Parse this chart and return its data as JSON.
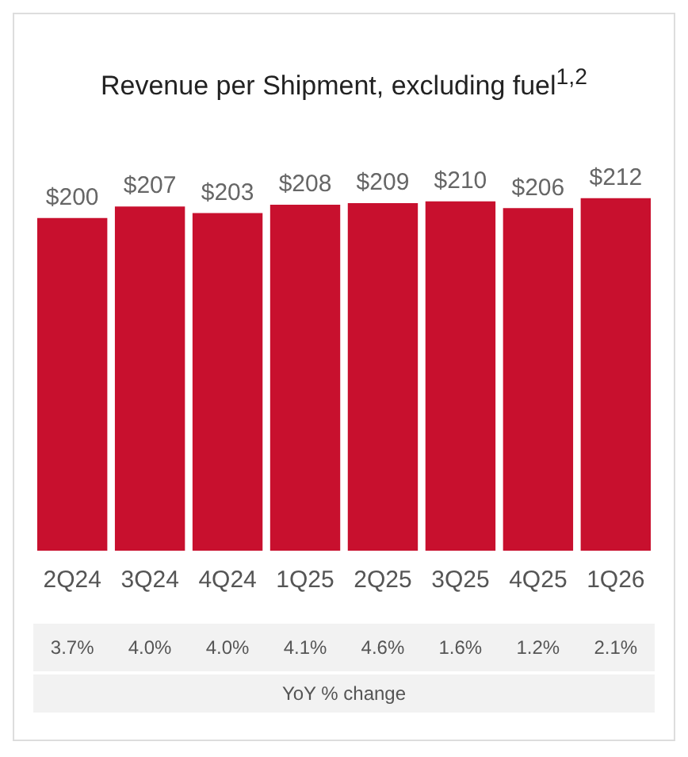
{
  "chart_data": {
    "type": "bar",
    "title": "Revenue per Shipment, excluding fuel$^{1,2}$",
    "categories": [
      "2Q24",
      "3Q24",
      "4Q24",
      "1Q25",
      "2Q25",
      "3Q25",
      "4Q25",
      "1Q26"
    ],
    "values": [
      200,
      207,
      203,
      208,
      209,
      210,
      206,
      212
    ],
    "value_labels": [
      "$200",
      "$207",
      "$203",
      "$208",
      "$209",
      "$210",
      "$206",
      "$212"
    ],
    "color": "#c8102e",
    "tick_labels": "x",
    "grid": false,
    "legend": false,
    "annotations": [
      "3.7%",
      "4.0%",
      "4.0%",
      "4.1%",
      "4.6%",
      "1.6%",
      "1.2%",
      "2.1%",
      "YoY % change"
    ]
  }
}
